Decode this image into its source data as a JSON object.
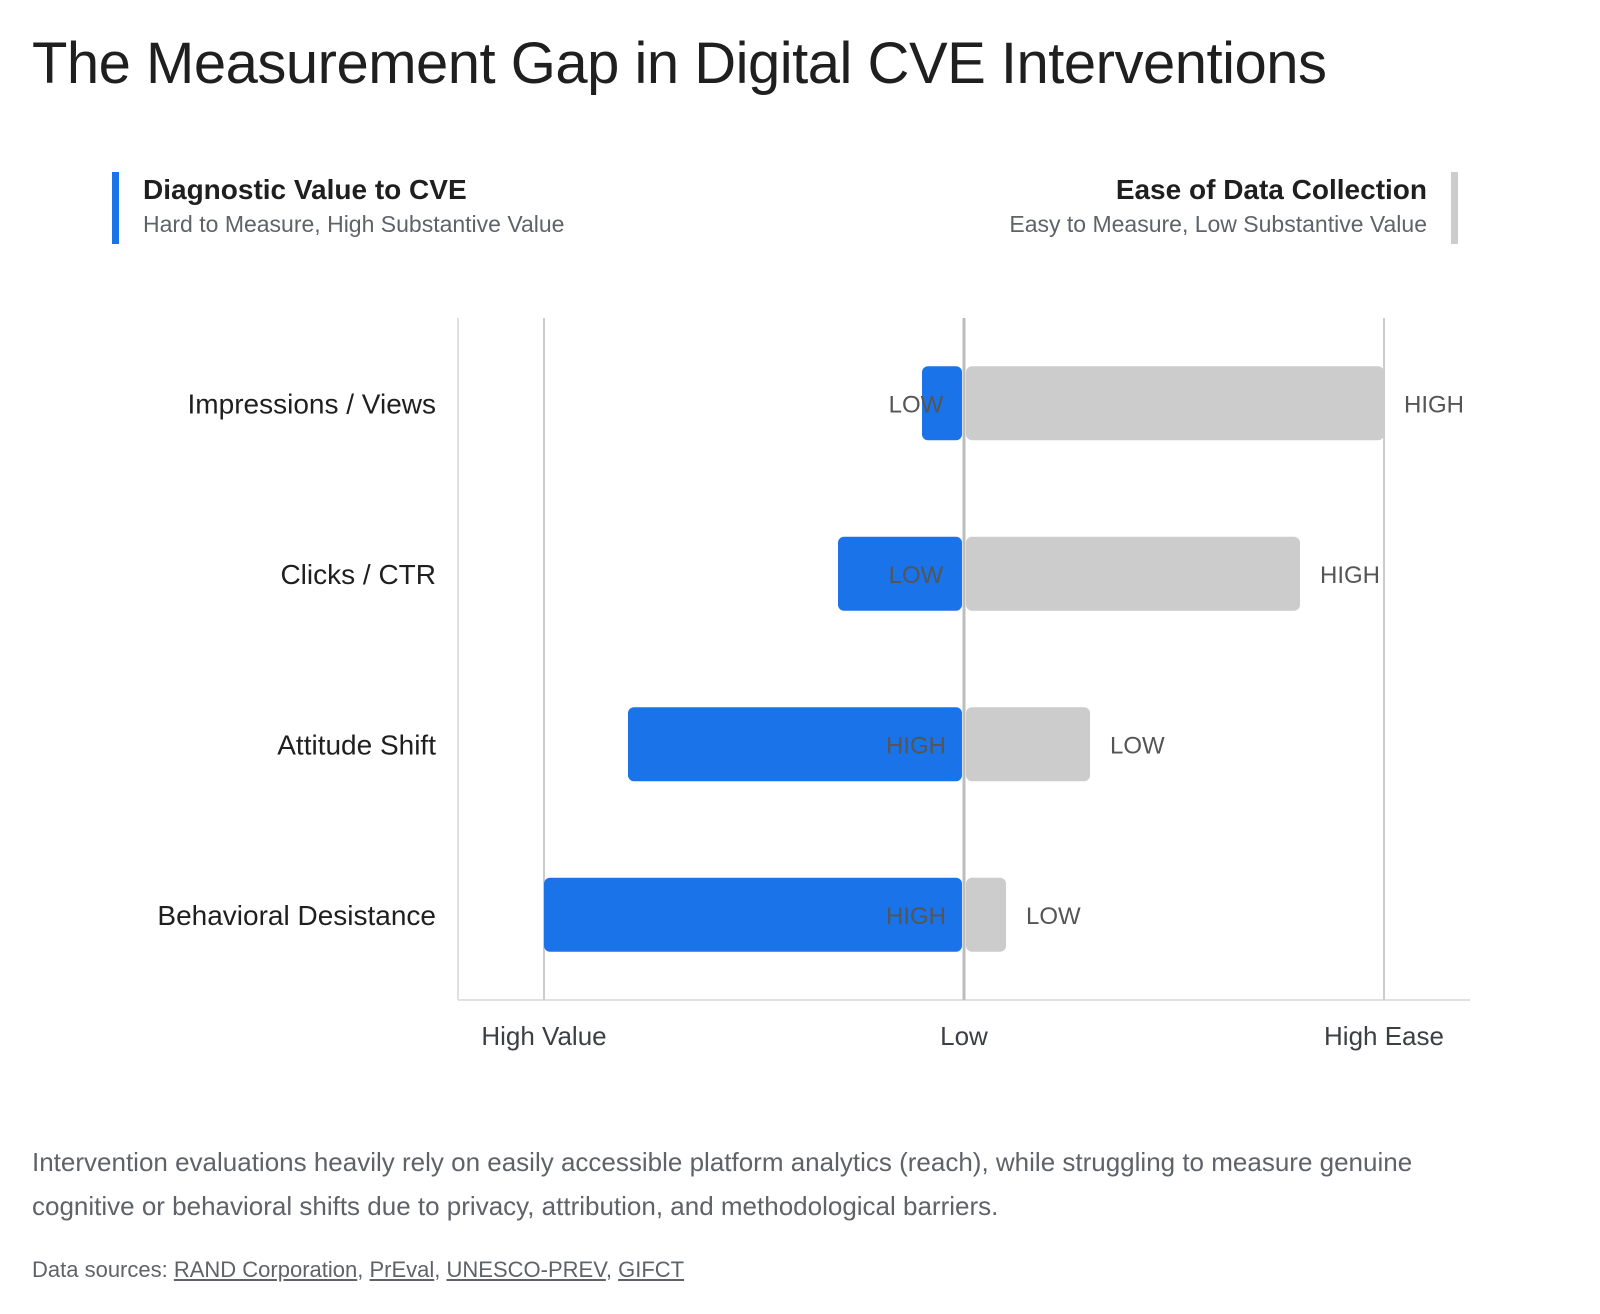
{
  "title": "The Measurement Gap in Digital CVE Interventions",
  "legend": {
    "left": {
      "title": "Diagnostic Value to CVE",
      "subtitle": "Hard to Measure, High Substantive Value",
      "color": "#1a73e8"
    },
    "right": {
      "title": "Ease of Data Collection",
      "subtitle": "Easy to Measure, Low Substantive Value",
      "color": "#cccccc"
    }
  },
  "chart_data": {
    "type": "bar",
    "orientation": "horizontal-diverging",
    "categories": [
      "Impressions / Views",
      "Clicks / CTR",
      "Attitude Shift",
      "Behavioral Desistance"
    ],
    "series": [
      {
        "name": "Diagnostic Value to CVE",
        "direction": "left",
        "color": "#1a73e8",
        "values": [
          0.1,
          0.3,
          0.8,
          1.0
        ],
        "labels": [
          "LOW",
          "LOW",
          "HIGH",
          "HIGH"
        ]
      },
      {
        "name": "Ease of Data Collection",
        "direction": "right",
        "color": "#cccccc",
        "values": [
          1.0,
          0.8,
          0.3,
          0.1
        ],
        "labels": [
          "HIGH",
          "HIGH",
          "LOW",
          "LOW"
        ]
      }
    ],
    "xlim": [
      -1,
      1
    ],
    "x_ticks": [
      {
        "value": -1,
        "label": "High Value"
      },
      {
        "value": 0,
        "label": "Low"
      },
      {
        "value": 1,
        "label": "High Ease"
      }
    ],
    "grid": true
  },
  "caption": "Intervention evaluations heavily rely on easily accessible platform analytics (reach), while struggling to measure genuine cognitive or behavioral shifts due to privacy, attribution, and methodological barriers.",
  "sources": {
    "prefix": "Data sources: ",
    "links": [
      "RAND Corporation",
      "PrEval",
      "UNESCO-PREV",
      "GIFCT"
    ],
    "separator": ", "
  }
}
